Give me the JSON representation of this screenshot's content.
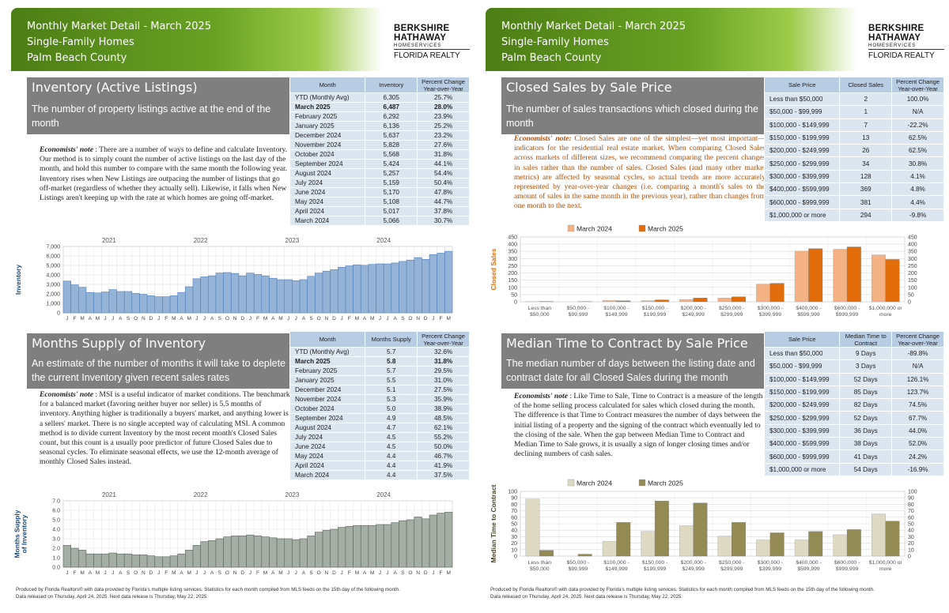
{
  "left": {
    "header": {
      "line1": "Monthly Market Detail - March 2025",
      "line2": "Single-Family Homes",
      "line3": "Palm Beach County"
    },
    "logo": {
      "line1": "BERKSHIRE",
      "line2": "HATHAWAY",
      "line3": "HOMESERVICES",
      "line4": "FLORIDA REALTY"
    },
    "inventory": {
      "title": "Inventory (Active Listings)",
      "desc": "The number of property listings active at the end of the month",
      "note_label": "Economists' note",
      "note_text": " :  There are a number of ways to define and calculate Inventory.  Our method is to simply count the number of active listings on the last day of the month, and hold this number to compare with the same month the following year.  Inventory rises when New Listings are outpacing the number of listings that go off-market (regardless of whether they actually sell).  Likewise, it falls when New Listings aren't keeping up with the rate at which homes are going off-market.",
      "table": {
        "headers": [
          "Month",
          "Inventory",
          "Percent Change Year-over-Year"
        ],
        "rows": [
          [
            "YTD (Monthly Avg)",
            "6,305",
            "25.7%"
          ],
          [
            "March 2025",
            "6,487",
            "28.0%"
          ],
          [
            "February 2025",
            "6,292",
            "23.9%"
          ],
          [
            "January 2025",
            "6,136",
            "25.2%"
          ],
          [
            "December 2024",
            "5,637",
            "23.2%"
          ],
          [
            "November 2024",
            "5,828",
            "27.6%"
          ],
          [
            "October 2024",
            "5,568",
            "31.8%"
          ],
          [
            "September 2024",
            "5,424",
            "44.1%"
          ],
          [
            "August 2024",
            "5,257",
            "54.4%"
          ],
          [
            "July 2024",
            "5,159",
            "50.4%"
          ],
          [
            "June 2024",
            "5,170",
            "47.8%"
          ],
          [
            "May 2024",
            "5,108",
            "44.7%"
          ],
          [
            "April 2024",
            "5,017",
            "37.8%"
          ],
          [
            "March 2024",
            "5,066",
            "30.7%"
          ]
        ]
      }
    },
    "msi": {
      "title": "Months Supply of Inventory",
      "desc": "An estimate of the number of months it will take to deplete the current Inventory given recent sales rates",
      "note_label": "Economists' note",
      "note_text": " :  MSI is a useful indicator of market conditions.  The benchmark for a balanced market (favoring neither buyer nor seller) is 5.5 months of inventory.  Anything higher is traditionally a buyers' market, and anything lower is a sellers' market.  There is no single accepted way of calculating MSI.  A common method is to divide current Inventory by the most recent month's Closed Sales count, but this count is a usually poor predictor of future Closed Sales due to seasonal cycles.  To eliminate seasonal effects, we use the 12-month average of monthly Closed Sales instead.",
      "table": {
        "headers": [
          "Month",
          "Months Supply",
          "Percent Change Year-over-Year"
        ],
        "rows": [
          [
            "YTD (Monthly Avg)",
            "5.7",
            "32.6%"
          ],
          [
            "March 2025",
            "5.8",
            "31.8%"
          ],
          [
            "February 2025",
            "5.7",
            "29.5%"
          ],
          [
            "January 2025",
            "5.5",
            "31.0%"
          ],
          [
            "December 2024",
            "5.1",
            "27.5%"
          ],
          [
            "November 2024",
            "5.3",
            "35.9%"
          ],
          [
            "October 2024",
            "5.0",
            "38.9%"
          ],
          [
            "September 2024",
            "4.9",
            "48.5%"
          ],
          [
            "August 2024",
            "4.7",
            "62.1%"
          ],
          [
            "July 2024",
            "4.5",
            "55.2%"
          ],
          [
            "June 2024",
            "4.5",
            "50.0%"
          ],
          [
            "May 2024",
            "4.4",
            "46.7%"
          ],
          [
            "April 2024",
            "4.4",
            "41.9%"
          ],
          [
            "March 2024",
            "4.4",
            "37.5%"
          ]
        ]
      }
    },
    "footer_line1": "Produced by Florida Realtors® with data provided by Florida's multiple listing services. Statistics for each month compiled from MLS feeds on the 15th day of the following month.",
    "footer_line2": "Data released on Thursday, April 24, 2025. Next data release is Thursday, May 22, 2025."
  },
  "right": {
    "header": {
      "line1": "Monthly Market Detail - March 2025",
      "line2": "Single-Family Homes",
      "line3": "Palm Beach County"
    },
    "logo": {
      "line1": "BERKSHIRE",
      "line2": "HATHAWAY",
      "line3": "HOMESERVICES",
      "line4": "FLORIDA REALTY"
    },
    "closed": {
      "title": "Closed Sales by Sale Price",
      "desc": "The number of sales transactions which closed during the month",
      "note_label": "Economists' note:",
      "note_text": "  Closed Sales are one of the simplest—yet most important—indicators for the residential real estate market. When comparing Closed Sales across markets of different sizes, we recommend comparing the percent changes in sales rather than the number of sales. Closed Sales (and many other market metrics) are affected by seasonal cycles, so actual trends are more accurately represented by year-over-year changes (i.e. comparing a month's sales to the amount of sales in the same month in the previous year), rather than changes from one month to the next.",
      "table": {
        "headers": [
          "Sale Price",
          "Closed Sales",
          "Percent Change Year-over-Year"
        ],
        "rows": [
          [
            "Less than $50,000",
            "2",
            "100.0%"
          ],
          [
            "$50,000 - $99,999",
            "1",
            "N/A"
          ],
          [
            "$100,000 - $149,999",
            "7",
            "-22.2%"
          ],
          [
            "$150,000 - $199,999",
            "13",
            "62.5%"
          ],
          [
            "$200,000 - $249,999",
            "26",
            "62.5%"
          ],
          [
            "$250,000 - $299,999",
            "34",
            "30.8%"
          ],
          [
            "$300,000 - $399,999",
            "128",
            "4.1%"
          ],
          [
            "$400,000 - $599,999",
            "369",
            "4.8%"
          ],
          [
            "$600,000 - $999,999",
            "381",
            "4.4%"
          ],
          [
            "$1,000,000 or more",
            "294",
            "-9.8%"
          ]
        ]
      }
    },
    "mttc": {
      "title": "Median Time to Contract by Sale Price",
      "desc": "The median number of days between the listing date and contract date for all Closed Sales during the month",
      "note_label": "Economists' note",
      "note_text": " :  Like Time to Sale, Time to Contract is a measure of the length of the home selling process calculated for sales which closed during the month. The difference is that Time to Contract measures the number of days between the initial listing of a property and the signing of the contract which eventually led to the closing of the sale. When the gap between Median Time to Contract and Median Time to Sale grows, it is usually a sign of longer closing times and/or declining numbers of cash sales.",
      "table": {
        "headers": [
          "Sale Price",
          "Median Time to Contract",
          "Percent Change Year-over-Year"
        ],
        "rows": [
          [
            "Less than $50,000",
            "9 Days",
            "-89.8%"
          ],
          [
            "$50,000 - $99,999",
            "3 Days",
            "N/A"
          ],
          [
            "$100,000 - $149,999",
            "52 Days",
            "126.1%"
          ],
          [
            "$150,000 - $199,999",
            "85 Days",
            "123.7%"
          ],
          [
            "$200,000 - $249,999",
            "82 Days",
            "74.5%"
          ],
          [
            "$250,000 - $299,999",
            "52 Days",
            "67.7%"
          ],
          [
            "$300,000 - $399,999",
            "36 Days",
            "44.0%"
          ],
          [
            "$400,000 - $599,999",
            "38 Days",
            "52.0%"
          ],
          [
            "$600,000 - $999,999",
            "41 Days",
            "24.2%"
          ],
          [
            "$1,000,000 or more",
            "54 Days",
            "-16.9%"
          ]
        ]
      }
    },
    "footer_line1": "Produced by Florida Realtors® with data provided by Florida's multiple listing services. Statistics for each month compiled from MLS feeds on the 15th day of the following month.",
    "footer_line2": "Data released on Thursday, April 24, 2025. Next data release is Thursday, May 22, 2025."
  },
  "chart_data": [
    {
      "id": "inventory",
      "type": "bar",
      "ylabel": "Inventory",
      "ylim": [
        0,
        7000
      ],
      "yticks": [
        "0",
        "1,000",
        "2,000",
        "3,000",
        "4,000",
        "5,000",
        "6,000",
        "7,000"
      ],
      "year_labels": [
        "2021",
        "2022",
        "2023",
        "2024"
      ],
      "categories": [
        "J",
        "F",
        "M",
        "A",
        "M",
        "J",
        "J",
        "A",
        "S",
        "O",
        "N",
        "D",
        "J",
        "F",
        "M",
        "A",
        "M",
        "J",
        "J",
        "A",
        "S",
        "O",
        "N",
        "D",
        "J",
        "F",
        "M",
        "A",
        "M",
        "J",
        "J",
        "A",
        "S",
        "O",
        "N",
        "D",
        "J",
        "F",
        "M",
        "A",
        "M",
        "J",
        "J",
        "A",
        "S",
        "O",
        "N",
        "D",
        "J",
        "F",
        "M"
      ],
      "values": [
        3350,
        2950,
        2700,
        2150,
        2100,
        2200,
        2450,
        2250,
        2250,
        2050,
        1950,
        1800,
        1700,
        1700,
        1800,
        2150,
        2750,
        3600,
        3800,
        3900,
        4200,
        4250,
        4150,
        3900,
        4200,
        4050,
        3900,
        3650,
        3500,
        3500,
        3400,
        3500,
        3850,
        4200,
        4400,
        4550,
        4800,
        4950,
        5066,
        5017,
        5108,
        5170,
        5159,
        5257,
        5424,
        5568,
        5828,
        5637,
        6136,
        6292,
        6487
      ],
      "grid": true
    },
    {
      "id": "msi",
      "type": "bar",
      "ylabel": "Months Supply of Inventory",
      "ylim": [
        0,
        7
      ],
      "yticks": [
        "0.0",
        "1.0",
        "2.0",
        "3.0",
        "4.0",
        "5.0",
        "6.0",
        "7.0"
      ],
      "year_labels": [
        "2021",
        "2022",
        "2023",
        "2024"
      ],
      "categories": [
        "J",
        "F",
        "M",
        "A",
        "M",
        "J",
        "J",
        "A",
        "S",
        "O",
        "N",
        "D",
        "J",
        "F",
        "M",
        "A",
        "M",
        "J",
        "J",
        "A",
        "S",
        "O",
        "N",
        "D",
        "J",
        "F",
        "M",
        "A",
        "M",
        "J",
        "J",
        "A",
        "S",
        "O",
        "N",
        "D",
        "J",
        "F",
        "M",
        "A",
        "M",
        "J",
        "J",
        "A",
        "S",
        "O",
        "N",
        "D",
        "J",
        "F",
        "M"
      ],
      "values": [
        2.3,
        2.0,
        1.8,
        1.4,
        1.4,
        1.4,
        1.5,
        1.4,
        1.4,
        1.3,
        1.3,
        1.2,
        1.1,
        1.1,
        1.2,
        1.4,
        1.8,
        2.3,
        2.7,
        2.8,
        3.0,
        3.2,
        3.3,
        3.3,
        3.4,
        3.3,
        3.2,
        3.1,
        3.0,
        3.0,
        2.9,
        3.0,
        3.3,
        3.7,
        3.9,
        4.0,
        4.2,
        4.3,
        4.4,
        4.4,
        4.4,
        4.5,
        4.5,
        4.7,
        4.9,
        5.0,
        5.3,
        5.1,
        5.5,
        5.7,
        5.8
      ],
      "grid": true
    },
    {
      "id": "closed",
      "type": "bar",
      "ylabel": "Closed Sales",
      "ylim": [
        0,
        450
      ],
      "yticks": [
        "0",
        "50",
        "100",
        "150",
        "200",
        "250",
        "300",
        "350",
        "400",
        "450"
      ],
      "categories": [
        "Less than $50,000",
        "$50,000 - $99,999",
        "$100,000 - $149,999",
        "$150,000 - $199,999",
        "$200,000 - $249,999",
        "$250,000 - $299,999",
        "$300,000 - $399,999",
        "$400,000 - $599,999",
        "$600,000 - $999,999",
        "$1,000,000 or more"
      ],
      "series": [
        {
          "name": "March 2024",
          "values": [
            1,
            0,
            9,
            8,
            16,
            26,
            123,
            352,
            365,
            326
          ]
        },
        {
          "name": "March 2025",
          "values": [
            2,
            1,
            7,
            13,
            26,
            34,
            128,
            369,
            381,
            294
          ]
        }
      ],
      "colors": [
        "#f4b183",
        "#e26b0a"
      ],
      "grid": true
    },
    {
      "id": "mttc",
      "type": "bar",
      "ylabel": "Median Time to Contract",
      "ylim": [
        0,
        100
      ],
      "yticks": [
        "0",
        "10",
        "20",
        "30",
        "40",
        "50",
        "60",
        "70",
        "80",
        "90",
        "100"
      ],
      "categories": [
        "Less than $50,000",
        "$50,000 - $99,999",
        "$100,000 - $149,999",
        "$150,000 - $199,999",
        "$200,000 - $249,999",
        "$250,000 - $299,999",
        "$300,000 - $399,999",
        "$400,000 - $599,999",
        "$600,000 - $999,999",
        "$1,000,000 or more"
      ],
      "series": [
        {
          "name": "March 2024",
          "values": [
            88,
            0,
            23,
            38,
            47,
            31,
            25,
            25,
            33,
            65
          ]
        },
        {
          "name": "March 2025",
          "values": [
            9,
            3,
            52,
            85,
            82,
            52,
            36,
            38,
            41,
            54
          ]
        }
      ],
      "colors": [
        "#ddd9c3",
        "#948a54"
      ],
      "grid": true
    }
  ]
}
